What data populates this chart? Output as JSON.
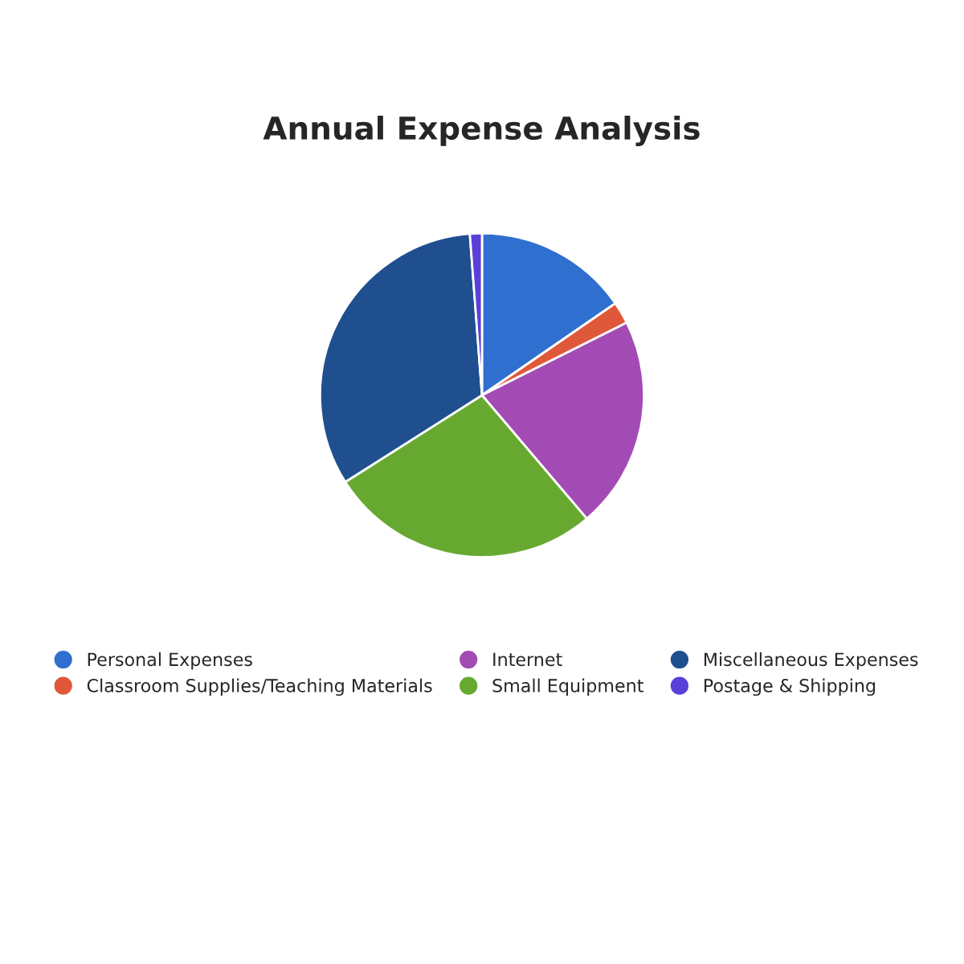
{
  "chart_data": {
    "type": "pie",
    "title": "Annual Expense Analysis",
    "categories": [
      "Personal Expenses",
      "Classroom Supplies/Teaching Materials",
      "Internet",
      "Small Equipment",
      "Miscellaneous Expenses",
      "Postage & Shipping"
    ],
    "values": [
      15.4,
      2.2,
      21.2,
      27.2,
      32.8,
      1.2
    ],
    "colors": [
      "#2f6fcf",
      "#e0583a",
      "#a34bb5",
      "#67a930",
      "#1f4f8f",
      "#5a3fd8"
    ],
    "legend": "bottom"
  }
}
